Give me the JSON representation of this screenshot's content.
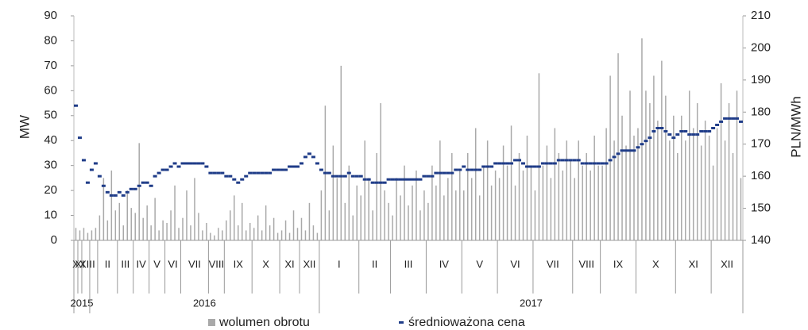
{
  "chart_data": {
    "type": "bar",
    "ylabel": "MW",
    "y2label": "PLN/MWh",
    "ylim": [
      0,
      90
    ],
    "yticks": [
      0,
      10,
      20,
      30,
      40,
      50,
      60,
      70,
      80,
      90
    ],
    "y2lim": [
      140,
      210
    ],
    "y2ticks": [
      140,
      150,
      160,
      170,
      180,
      190,
      200,
      210
    ],
    "series": [
      {
        "name": "wolumen obrotu",
        "color": "#a9a9a9"
      },
      {
        "name": "średnioważona cena",
        "color": "#1f3c88",
        "axis": "y2"
      }
    ],
    "years": [
      {
        "label": "2015",
        "months": [
          {
            "label": "X",
            "volume": [
              5
            ],
            "price": [
              182
            ]
          },
          {
            "label": "XI",
            "volume": [
              4
            ],
            "price": [
              172
            ]
          },
          {
            "label": "XII",
            "volume": [
              5,
              3
            ],
            "price": [
              165,
              158
            ]
          }
        ]
      },
      {
        "label": "2016",
        "months": [
          {
            "label": "I",
            "volume": [
              4,
              5
            ],
            "price": [
              162,
              164
            ]
          },
          {
            "label": "II",
            "volume": [
              10,
              25,
              8,
              28,
              12
            ],
            "price": [
              160,
              157,
              155,
              154,
              154
            ]
          },
          {
            "label": "III",
            "volume": [
              15,
              6,
              20,
              13
            ],
            "price": [
              155,
              154,
              155,
              156
            ]
          },
          {
            "label": "IV",
            "volume": [
              11,
              39,
              9,
              14
            ],
            "price": [
              156,
              157,
              158,
              158
            ]
          },
          {
            "label": "V",
            "volume": [
              6,
              17,
              4,
              8
            ],
            "price": [
              157,
              160,
              161,
              162
            ]
          },
          {
            "label": "VI",
            "volume": [
              7,
              12,
              22,
              5
            ],
            "price": [
              162,
              163,
              164,
              163
            ]
          },
          {
            "label": "VII",
            "volume": [
              9,
              20,
              6,
              25,
              11,
              4,
              7
            ],
            "price": [
              164,
              164,
              164,
              164,
              164,
              164,
              163
            ]
          },
          {
            "label": "VIII",
            "volume": [
              3,
              2,
              5,
              4
            ],
            "price": [
              161,
              161,
              161,
              161
            ]
          },
          {
            "label": "IX",
            "volume": [
              8,
              12,
              18,
              6,
              15,
              4,
              7
            ],
            "price": [
              160,
              160,
              159,
              158,
              159,
              160,
              161
            ]
          },
          {
            "label": "X",
            "volume": [
              5,
              10,
              4,
              14,
              6,
              9,
              3
            ],
            "price": [
              161,
              161,
              161,
              161,
              161,
              162,
              162
            ]
          },
          {
            "label": "XI",
            "volume": [
              4,
              8,
              3,
              12,
              5
            ],
            "price": [
              162,
              162,
              163,
              163,
              163
            ]
          },
          {
            "label": "XII",
            "volume": [
              9,
              4,
              15,
              6,
              3
            ],
            "price": [
              164,
              166,
              167,
              166,
              164
            ]
          }
        ]
      },
      {
        "label": "2017",
        "months": [
          {
            "label": "I",
            "volume": [
              20,
              54,
              12,
              38,
              25,
              70,
              15,
              30,
              10,
              22
            ],
            "price": [
              162,
              161,
              161,
              160,
              160,
              160,
              160,
              161,
              160,
              160
            ]
          },
          {
            "label": "II",
            "volume": [
              18,
              40,
              25,
              12,
              35,
              55,
              20,
              15
            ],
            "price": [
              160,
              159,
              159,
              158,
              158,
              158,
              158,
              159
            ]
          },
          {
            "label": "III",
            "volume": [
              10,
              25,
              18,
              30,
              14,
              22,
              28,
              12,
              20
            ],
            "price": [
              159,
              159,
              159,
              159,
              159,
              159,
              159,
              159,
              160
            ]
          },
          {
            "label": "IV",
            "volume": [
              15,
              30,
              22,
              40,
              18,
              25,
              35,
              20,
              28
            ],
            "price": [
              160,
              160,
              161,
              161,
              161,
              161,
              161,
              162,
              162
            ]
          },
          {
            "label": "V",
            "volume": [
              20,
              35,
              25,
              45,
              18,
              30,
              40,
              22,
              28
            ],
            "price": [
              163,
              162,
              162,
              162,
              162,
              163,
              163,
              163,
              164
            ]
          },
          {
            "label": "VI",
            "volume": [
              25,
              38,
              30,
              46,
              22,
              35,
              28,
              42,
              30
            ],
            "price": [
              164,
              164,
              164,
              164,
              165,
              165,
              164,
              163,
              163
            ]
          },
          {
            "label": "VII",
            "volume": [
              20,
              67,
              30,
              38,
              25,
              45,
              35,
              28,
              40,
              32
            ],
            "price": [
              163,
              163,
              164,
              164,
              164,
              164,
              165,
              165,
              165,
              165
            ]
          },
          {
            "label": "VIII",
            "volume": [
              25,
              40,
              30,
              35,
              28,
              42,
              30
            ],
            "price": [
              165,
              165,
              164,
              164,
              164,
              164,
              164
            ]
          },
          {
            "label": "IX",
            "volume": [
              30,
              45,
              66,
              40,
              75,
              50,
              38,
              60,
              42
            ],
            "price": [
              164,
              164,
              165,
              166,
              167,
              168,
              168,
              168,
              168
            ]
          },
          {
            "label": "X",
            "volume": [
              45,
              81,
              60,
              55,
              66,
              48,
              72,
              58,
              40,
              50
            ],
            "price": [
              169,
              170,
              171,
              172,
              174,
              175,
              175,
              174,
              173,
              172
            ]
          },
          {
            "label": "XI",
            "volume": [
              35,
              50,
              40,
              60,
              45,
              55,
              38,
              48,
              42
            ],
            "price": [
              173,
              174,
              174,
              173,
              173,
              173,
              174,
              174,
              174
            ]
          },
          {
            "label": "XII",
            "volume": [
              30,
              45,
              63,
              40,
              55,
              35,
              60,
              25
            ],
            "price": [
              175,
              176,
              177,
              178,
              178,
              178,
              178,
              177
            ]
          }
        ]
      }
    ]
  }
}
